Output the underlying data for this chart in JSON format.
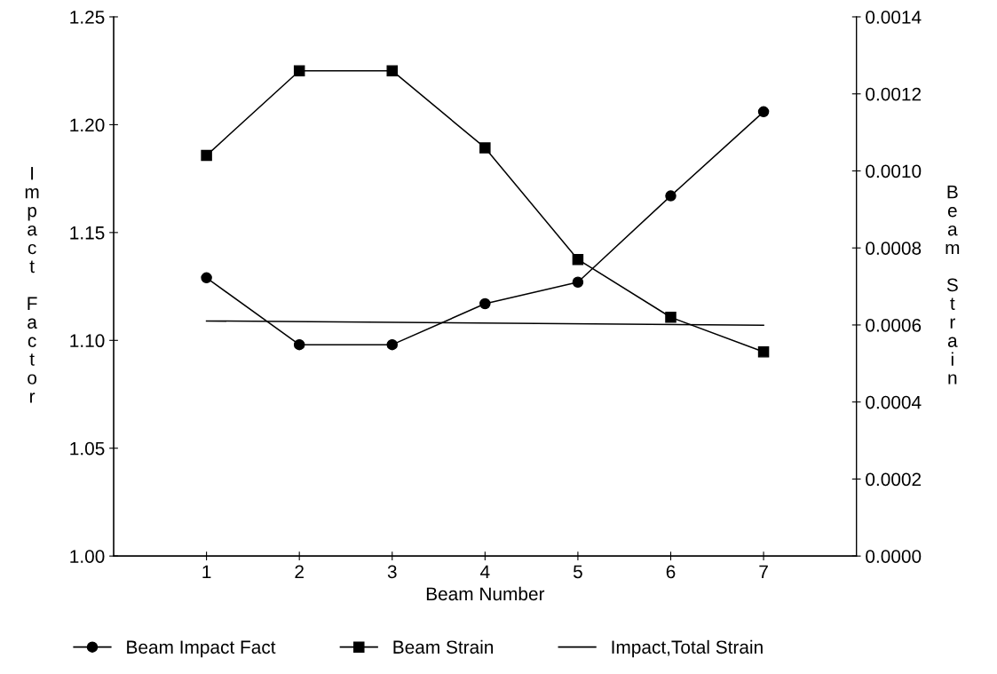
{
  "chart_data": {
    "type": "line",
    "xlabel": "Beam Number",
    "ylabel": "Impact Factor",
    "y2label": "Beam Strain",
    "x": [
      1,
      2,
      3,
      4,
      5,
      6,
      7
    ],
    "xlim": [
      0,
      8
    ],
    "xticks": [
      1,
      2,
      3,
      4,
      5,
      6,
      7
    ],
    "ylim": [
      1.0,
      1.25
    ],
    "yticks": [
      {
        "value": 1.0,
        "label": "1.00"
      },
      {
        "value": 1.05,
        "label": "1.05"
      },
      {
        "value": 1.1,
        "label": "1.10"
      },
      {
        "value": 1.15,
        "label": "1.15"
      },
      {
        "value": 1.2,
        "label": "1.20"
      },
      {
        "value": 1.25,
        "label": "1.25"
      }
    ],
    "y2lim": [
      0,
      0.0014
    ],
    "y2ticks": [
      {
        "value": 0,
        "label": "0.0000"
      },
      {
        "value": 0.0002,
        "label": "0.0002"
      },
      {
        "value": 0.0004,
        "label": "0.0004"
      },
      {
        "value": 0.0006,
        "label": "0.0006"
      },
      {
        "value": 0.0008,
        "label": "0.0008"
      },
      {
        "value": 0.001,
        "label": "0.0010"
      },
      {
        "value": 0.0012,
        "label": "0.0012"
      },
      {
        "value": 0.0014,
        "label": "0.0014"
      }
    ],
    "series": [
      {
        "name": "Beam Impact Fact",
        "color": "#000000",
        "marker": "circle",
        "values": [
          1.129,
          1.098,
          1.098,
          1.117,
          1.127,
          1.167,
          1.206
        ]
      },
      {
        "name": "Beam Strain",
        "color": "#000000",
        "marker": "square",
        "axis": "y2",
        "values": [
          0.00104,
          0.00126,
          0.00126,
          0.00106,
          0.00077,
          0.00062,
          0.00053
        ]
      },
      {
        "name": "Impact,Total Strain",
        "color": "#000000",
        "marker": "none",
        "x": [
          1,
          7
        ],
        "values": [
          1.109,
          1.107
        ]
      }
    ],
    "grid": false,
    "legend": "bottom"
  }
}
